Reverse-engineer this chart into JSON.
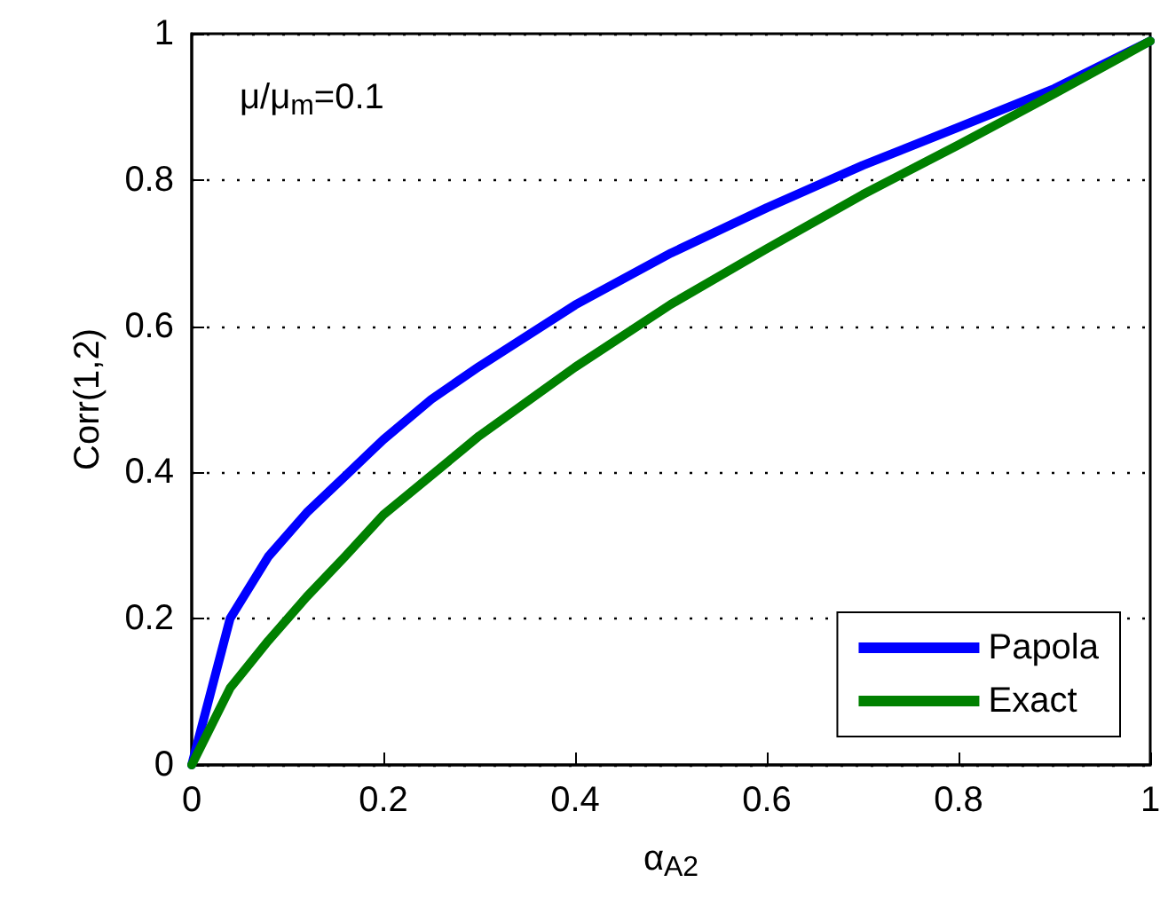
{
  "chart_data": {
    "type": "line",
    "xlabel": "α$_{A2}$",
    "ylabel": "Corr(1,2)",
    "annotations": [
      "μ/μ$_{m}$=0.1"
    ],
    "series": [
      {
        "name": "Papola",
        "color": "#0000ff",
        "x": [
          0,
          0.04,
          0.08,
          0.12,
          0.16,
          0.2,
          0.25,
          0.3,
          0.4,
          0.5,
          0.6,
          0.7,
          0.8,
          0.9,
          1
        ],
        "values": [
          0,
          0.2,
          0.285,
          0.345,
          0.395,
          0.445,
          0.5,
          0.545,
          0.629,
          0.7,
          0.762,
          0.82,
          0.872,
          0.925,
          0.99
        ]
      },
      {
        "name": "Exact",
        "color": "#008000",
        "x": [
          0,
          0.04,
          0.08,
          0.12,
          0.16,
          0.2,
          0.3,
          0.4,
          0.5,
          0.6,
          0.7,
          0.8,
          0.9,
          1
        ],
        "values": [
          0,
          0.105,
          0.17,
          0.23,
          0.285,
          0.342,
          0.45,
          0.544,
          0.63,
          0.706,
          0.78,
          0.848,
          0.918,
          0.99
        ]
      }
    ],
    "xlim": [
      0,
      1
    ],
    "xticks": [
      0,
      0.2,
      0.4,
      0.6,
      0.8,
      1
    ],
    "ylim": [
      0,
      1
    ],
    "yticks": [
      0,
      0.2,
      0.4,
      0.6,
      0.8,
      1
    ],
    "grid": "y",
    "legend": "bottom right",
    "marker": "none",
    "line_style": "solid"
  }
}
